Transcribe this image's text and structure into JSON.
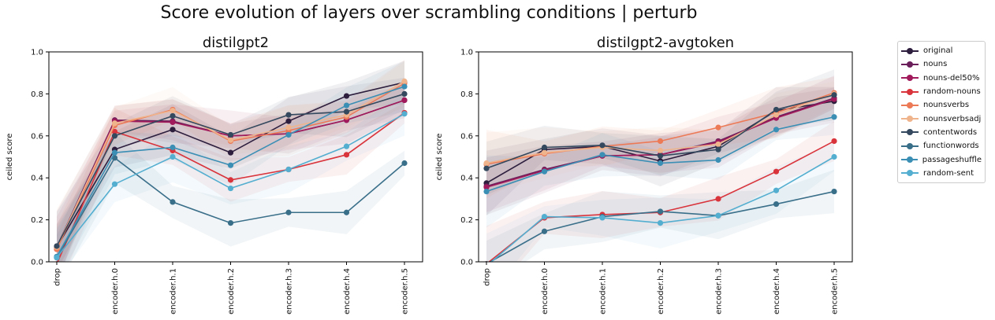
{
  "figure": {
    "suptitle": "Score evolution of layers over scrambling conditions | perturb"
  },
  "legend": {
    "items": [
      {
        "label": "original",
        "color": "#2d1e3e"
      },
      {
        "label": "nouns",
        "color": "#6b1f5a"
      },
      {
        "label": "nouns-del50%",
        "color": "#a11a5b"
      },
      {
        "label": "random-nouns",
        "color": "#d9343c"
      },
      {
        "label": "nounsverbs",
        "color": "#ec7a57"
      },
      {
        "label": "nounsverbsadj",
        "color": "#efb48c"
      },
      {
        "label": "contentwords",
        "color": "#34495e"
      },
      {
        "label": "functionwords",
        "color": "#3a6f8a"
      },
      {
        "label": "passageshuffle",
        "color": "#3b8fb5"
      },
      {
        "label": "random-sent",
        "color": "#54aed0"
      }
    ]
  },
  "chart_data": [
    {
      "type": "line",
      "title": "distilgpt2",
      "xlabel": "",
      "ylabel": "ceiled score",
      "ylim": [
        0,
        1.0
      ],
      "yticks": [
        "0.0",
        "0.2",
        "0.4",
        "0.6",
        "0.8",
        "1.0"
      ],
      "grid": false,
      "categories": [
        "drop",
        "encoder.h.0",
        "encoder.h.1",
        "encoder.h.2",
        "encoder.h.3",
        "encoder.h.4",
        "encoder.h.5"
      ],
      "series": [
        {
          "name": "original",
          "values": [
            0.07,
            0.535,
            0.63,
            0.52,
            0.67,
            0.79,
            0.855
          ]
        },
        {
          "name": "nouns",
          "values": [
            0.07,
            0.675,
            0.67,
            0.6,
            0.61,
            0.675,
            0.77
          ]
        },
        {
          "name": "nouns-del50%",
          "values": [
            0.06,
            0.67,
            0.665,
            0.6,
            0.61,
            0.675,
            0.77
          ]
        },
        {
          "name": "random-nouns",
          "values": [
            -0.01,
            0.62,
            0.53,
            0.39,
            0.44,
            0.51,
            0.71
          ]
        },
        {
          "name": "nounsverbs",
          "values": [
            0.06,
            0.65,
            0.725,
            0.575,
            0.625,
            0.69,
            0.85
          ]
        },
        {
          "name": "nounsverbsadj",
          "values": [
            0.07,
            0.66,
            0.72,
            0.58,
            0.64,
            0.7,
            0.86
          ]
        },
        {
          "name": "contentwords",
          "values": [
            0.075,
            0.6,
            0.695,
            0.605,
            0.7,
            0.715,
            0.8
          ]
        },
        {
          "name": "functionwords",
          "values": [
            0.02,
            0.495,
            0.285,
            0.185,
            0.235,
            0.235,
            0.47
          ]
        },
        {
          "name": "passageshuffle",
          "values": [
            0.025,
            0.52,
            0.545,
            0.46,
            0.605,
            0.745,
            0.835
          ]
        },
        {
          "name": "random-sent",
          "values": [
            0.02,
            0.37,
            0.5,
            0.35,
            0.44,
            0.55,
            0.705
          ]
        }
      ]
    },
    {
      "type": "line",
      "title": "distilgpt2-avgtoken",
      "xlabel": "",
      "ylabel": "ceiled score",
      "ylim": [
        0,
        1.0
      ],
      "yticks": [
        "0.0",
        "0.2",
        "0.4",
        "0.6",
        "0.8",
        "1.0"
      ],
      "grid": false,
      "categories": [
        "drop",
        "encoder.h.0",
        "encoder.h.1",
        "encoder.h.2",
        "encoder.h.3",
        "encoder.h.4",
        "encoder.h.5"
      ],
      "series": [
        {
          "name": "original",
          "values": [
            0.375,
            0.535,
            0.55,
            0.48,
            0.55,
            0.72,
            0.765
          ]
        },
        {
          "name": "nouns",
          "values": [
            0.36,
            0.44,
            0.505,
            0.51,
            0.575,
            0.69,
            0.78
          ]
        },
        {
          "name": "nouns-del50%",
          "values": [
            0.355,
            0.435,
            0.505,
            0.51,
            0.57,
            0.685,
            0.775
          ]
        },
        {
          "name": "random-nouns",
          "values": [
            -0.01,
            0.21,
            0.225,
            0.235,
            0.3,
            0.43,
            0.575
          ]
        },
        {
          "name": "nounsverbs",
          "values": [
            0.465,
            0.515,
            0.55,
            0.575,
            0.64,
            0.71,
            0.805
          ]
        },
        {
          "name": "nounsverbsadj",
          "values": [
            0.47,
            0.52,
            0.545,
            0.53,
            0.56,
            0.7,
            0.8
          ]
        },
        {
          "name": "contentwords",
          "values": [
            0.445,
            0.545,
            0.555,
            0.505,
            0.535,
            0.725,
            0.795
          ]
        },
        {
          "name": "functionwords",
          "values": [
            -0.01,
            0.145,
            0.215,
            0.24,
            0.22,
            0.275,
            0.335
          ]
        },
        {
          "name": "passageshuffle",
          "values": [
            0.335,
            0.43,
            0.51,
            0.47,
            0.485,
            0.63,
            0.69
          ]
        },
        {
          "name": "random-sent",
          "values": [
            -0.02,
            0.215,
            0.21,
            0.185,
            0.22,
            0.34,
            0.5
          ]
        }
      ]
    }
  ]
}
